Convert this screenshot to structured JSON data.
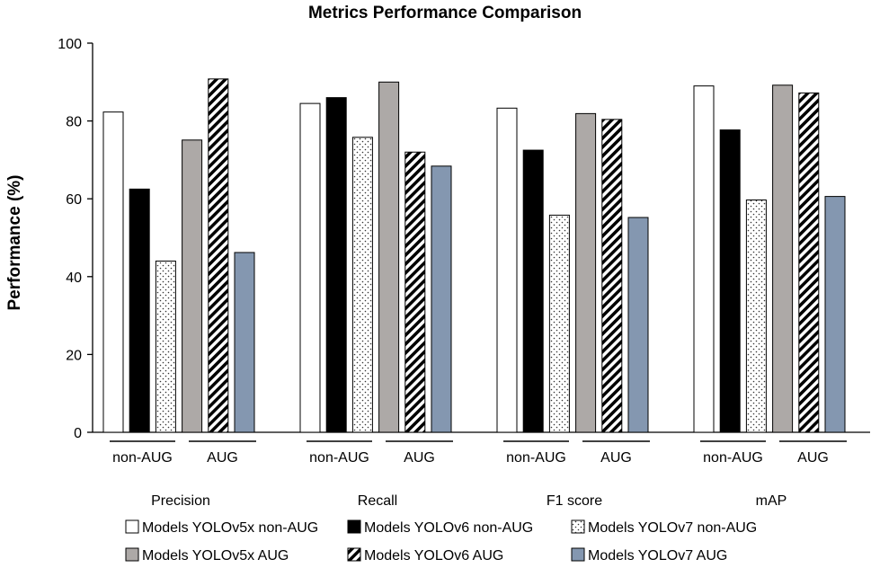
{
  "chart_data": {
    "type": "bar",
    "title": "Metrics Performance Comparison",
    "xlabel": "",
    "ylabel": "Performance (%)",
    "ylim": [
      0,
      100
    ],
    "yticks": [
      0,
      20,
      40,
      60,
      80,
      100
    ],
    "grid": false,
    "legend_position": "bottom",
    "categories": [
      "Precision",
      "Recall",
      "F1 score",
      "mAP"
    ],
    "subgroups": [
      "non-AUG",
      "AUG"
    ],
    "series": [
      {
        "name": "Models YOLOv5x non-AUG",
        "subgroup": "non-AUG",
        "pattern": "white",
        "color": "#ffffff",
        "values": [
          82.3,
          84.5,
          83.3,
          89.0
        ]
      },
      {
        "name": "Models YOLOv6 non-AUG",
        "subgroup": "non-AUG",
        "pattern": "black",
        "color": "#000000",
        "values": [
          62.5,
          86.0,
          72.5,
          77.7
        ]
      },
      {
        "name": "Models YOLOv7 non-AUG",
        "subgroup": "non-AUG",
        "pattern": "dots",
        "color": "#ffffff",
        "values": [
          44.0,
          75.8,
          55.8,
          59.7
        ]
      },
      {
        "name": "Models YOLOv5x AUG",
        "subgroup": "AUG",
        "pattern": "gray",
        "color": "#ada9a7",
        "values": [
          75.1,
          90.0,
          81.9,
          89.2
        ]
      },
      {
        "name": "Models YOLOv6 AUG",
        "subgroup": "AUG",
        "pattern": "hatch",
        "color": "#ffffff",
        "values": [
          90.8,
          72.0,
          80.4,
          87.2
        ]
      },
      {
        "name": "Models YOLOv7 AUG",
        "subgroup": "AUG",
        "pattern": "blue",
        "color": "#8497b0",
        "values": [
          46.2,
          68.4,
          55.2,
          60.6
        ]
      }
    ]
  }
}
